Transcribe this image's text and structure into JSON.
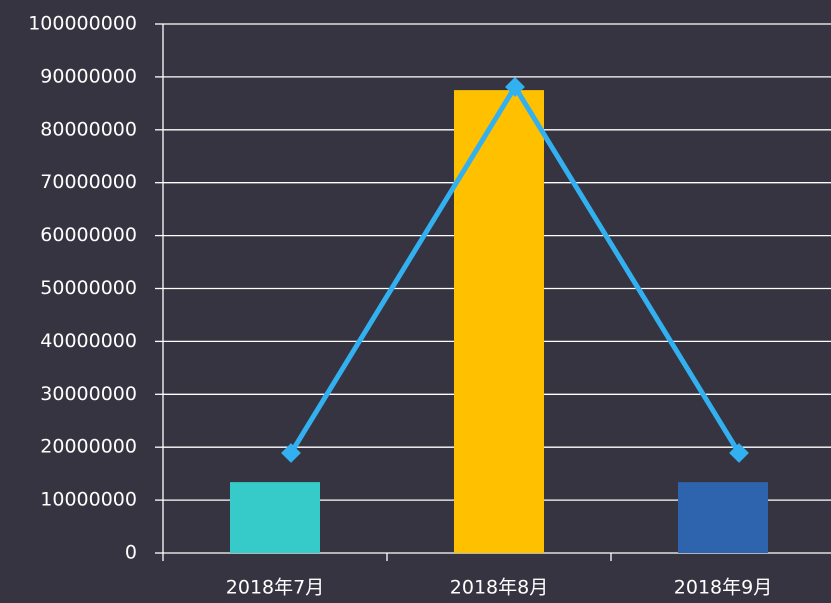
{
  "chart_data": {
    "type": "bar",
    "categories": [
      "2018年7月",
      "2018年8月",
      "2018年9月"
    ],
    "series": [
      {
        "type": "bar",
        "colors": [
          "#36cbc8",
          "#ffc000",
          "#2e63ad"
        ],
        "values": [
          13400000,
          87500000,
          13400000
        ]
      },
      {
        "type": "line",
        "color": "#33b0f0",
        "values": [
          18900000,
          88100000,
          18900000
        ]
      }
    ],
    "ylim": [
      0,
      100000000
    ],
    "yticks": [
      0,
      10000000,
      20000000,
      30000000,
      40000000,
      50000000,
      60000000,
      70000000,
      80000000,
      90000000,
      100000000
    ],
    "grid": true
  }
}
